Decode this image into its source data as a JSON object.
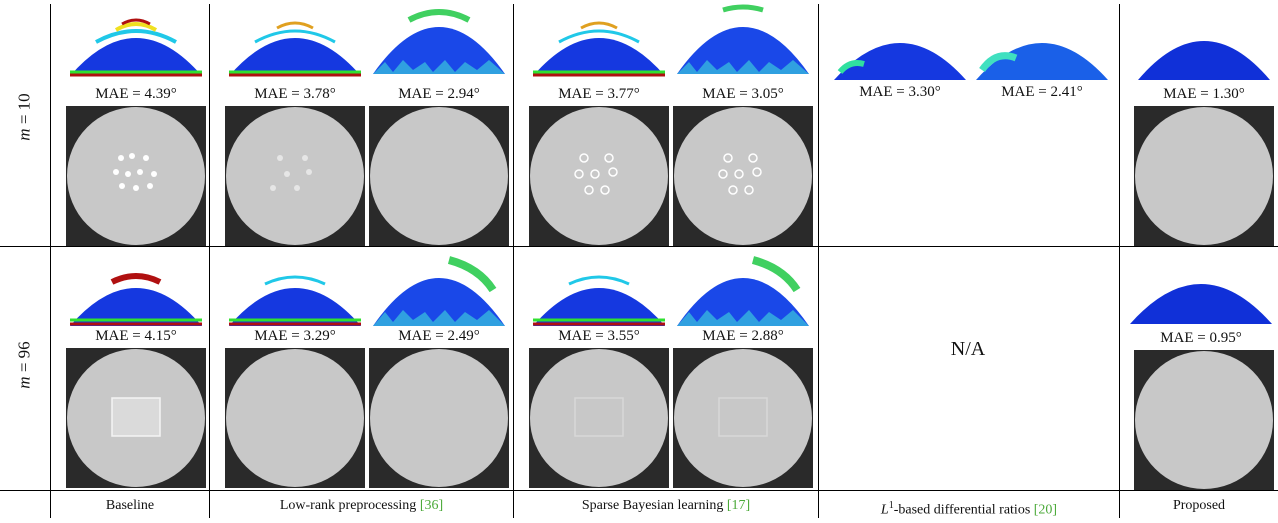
{
  "colors": {
    "ref": "#4caa3a",
    "dome_fill": "#1030d8",
    "sphere": "#c8c8c8"
  },
  "rows": [
    {
      "label_var": "m",
      "label_eq": " = 10",
      "maes": [
        "MAE = 4.39°",
        "MAE = 3.78°",
        "MAE = 2.94°",
        "MAE = 3.77°",
        "MAE = 3.05°",
        "MAE = 3.30°",
        "MAE = 2.41°",
        "MAE = 1.30°"
      ]
    },
    {
      "label_var": "m",
      "label_eq": " = 96",
      "maes": [
        "MAE = 4.15°",
        "MAE = 3.29°",
        "MAE = 2.49°",
        "MAE = 3.55°",
        "MAE = 2.88°",
        "MAE = 0.95°"
      ],
      "na": "N/A"
    }
  ],
  "columns": [
    {
      "label": "Baseline",
      "ref": ""
    },
    {
      "label": "Low-rank preprocessing ",
      "ref": "[36]"
    },
    {
      "label": "Sparse Bayesian learning ",
      "ref": "[17]"
    },
    {
      "label_pre": "L",
      "label_sup": "1",
      "label": "-based differential ratios ",
      "ref": "[20]"
    },
    {
      "label": "Proposed",
      "ref": ""
    }
  ]
}
